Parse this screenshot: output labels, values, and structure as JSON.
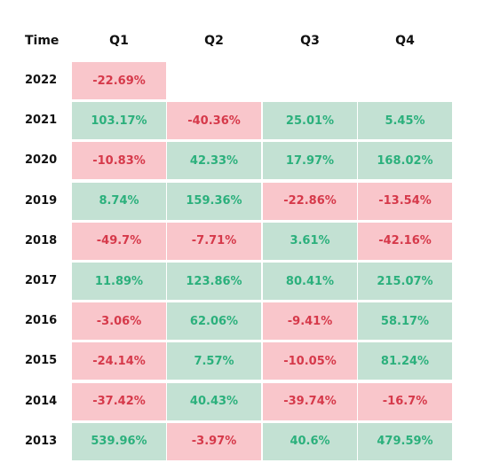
{
  "chart_data": {
    "type": "table",
    "header_label": "Time",
    "columns": [
      "Q1",
      "Q2",
      "Q3",
      "Q4"
    ],
    "rows": [
      {
        "year": "2022",
        "values": [
          "-22.69%",
          null,
          null,
          null
        ]
      },
      {
        "year": "2021",
        "values": [
          "103.17%",
          "-40.36%",
          "25.01%",
          "5.45%"
        ]
      },
      {
        "year": "2020",
        "values": [
          "-10.83%",
          "42.33%",
          "17.97%",
          "168.02%"
        ]
      },
      {
        "year": "2019",
        "values": [
          "8.74%",
          "159.36%",
          "-22.86%",
          "-13.54%"
        ]
      },
      {
        "year": "2018",
        "values": [
          "-49.7%",
          "-7.71%",
          "3.61%",
          "-42.16%"
        ]
      },
      {
        "year": "2017",
        "values": [
          "11.89%",
          "123.86%",
          "80.41%",
          "215.07%"
        ]
      },
      {
        "year": "2016",
        "values": [
          "-3.06%",
          "62.06%",
          "-9.41%",
          "58.17%"
        ]
      },
      {
        "year": "2015",
        "values": [
          "-24.14%",
          "7.57%",
          "-10.05%",
          "81.24%"
        ]
      },
      {
        "year": "2014",
        "values": [
          "-37.42%",
          "40.43%",
          "-39.74%",
          "-16.7%"
        ]
      },
      {
        "year": "2013",
        "values": [
          "539.96%",
          "-3.97%",
          "40.6%",
          "479.59%"
        ]
      }
    ],
    "colors": {
      "positive_bg": "#c3e1d3",
      "positive_text": "#2bb07c",
      "negative_bg": "#f9c6cb",
      "negative_text": "#d6394a"
    }
  }
}
